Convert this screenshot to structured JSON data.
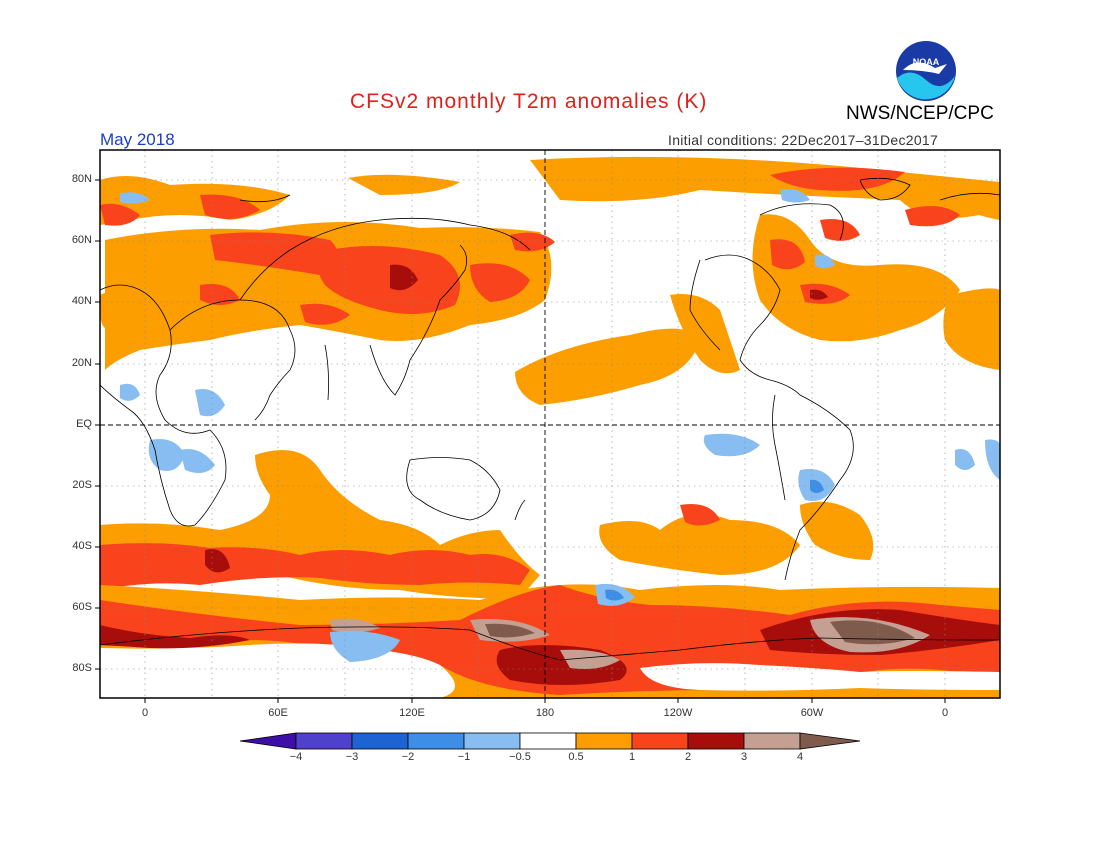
{
  "header": {
    "title": "CFSv2 monthly T2m anomalies (K)",
    "agency": "NWS/NCEP/CPC",
    "logo_text": "NOAA",
    "month": "May 2018",
    "initial_conditions": "Initial conditions: 22Dec2017–31Dec2017"
  },
  "map": {
    "lat_labels": [
      "80N",
      "60N",
      "40N",
      "20N",
      "EQ",
      "20S",
      "40S",
      "60S",
      "80S"
    ],
    "lon_labels": [
      "0",
      "60E",
      "120E",
      "180",
      "120W",
      "60W",
      "0"
    ]
  },
  "colorbar": {
    "labels": [
      "−4",
      "−3",
      "−2",
      "−1",
      "−0.5",
      "0.5",
      "1",
      "2",
      "3",
      "4"
    ],
    "colors": [
      "#3d0fa8",
      "#5041cc",
      "#1e63d2",
      "#3f8ee6",
      "#87bdf0",
      "#ffffff",
      "#fd9e00",
      "#f8431c",
      "#a70e0b",
      "#c59f92",
      "#7f5b4e"
    ]
  }
}
